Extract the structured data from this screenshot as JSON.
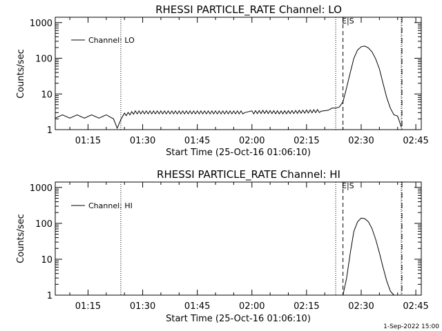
{
  "footer": "1-Sep-2022 15:00",
  "chart_data": [
    {
      "type": "line",
      "title": "RHESSI PARTICLE_RATE Channel: LO",
      "xlabel": "Start Time (25-Oct-16 01:06:10)",
      "ylabel": "Counts/sec",
      "yscale": "log",
      "x_tick_labels": [
        "01:15",
        "01:30",
        "01:45",
        "02:00",
        "02:15",
        "02:30",
        "02:45"
      ],
      "y_tick_labels": [
        "1",
        "10",
        "100",
        "1000"
      ],
      "legend": {
        "label": "Channel: LO",
        "position": "top-left"
      },
      "markers": {
        "dotted": [
          "01:24",
          "02:23",
          "02:41"
        ],
        "dashed": [
          "02:25"
        ],
        "dashdot": [
          "02:41"
        ],
        "label": "E|S"
      },
      "series": [
        {
          "name": "Channel: LO",
          "x": [
            "01:06",
            "01:08",
            "01:10",
            "01:12",
            "01:14",
            "01:16",
            "01:18",
            "01:20",
            "01:22",
            "01:23",
            "01:24",
            "01:25",
            "01:28",
            "01:33",
            "01:38",
            "01:43",
            "01:48",
            "01:53",
            "01:58",
            "02:00",
            "02:03",
            "02:08",
            "02:13",
            "02:16",
            "02:19",
            "02:21",
            "02:22",
            "02:23",
            "02:24",
            "02:25",
            "02:26",
            "02:27",
            "02:28",
            "02:29",
            "02:30",
            "02:31",
            "02:32",
            "02:33",
            "02:34",
            "02:35",
            "02:36",
            "02:37",
            "02:38",
            "02:39",
            "02:40",
            "02:41"
          ],
          "y": [
            2.1,
            2.6,
            2.1,
            2.6,
            2.1,
            2.6,
            2.1,
            2.6,
            2.0,
            1.1,
            1.9,
            2.6,
            3.0,
            3.0,
            3.0,
            3.0,
            3.0,
            3.0,
            3.0,
            3.0,
            3.1,
            3.0,
            3.1,
            3.2,
            3.3,
            3.5,
            4.0,
            4.0,
            4.3,
            6,
            15,
            40,
            100,
            170,
            210,
            220,
            195,
            150,
            95,
            50,
            20,
            8,
            4,
            2.6,
            2.4,
            1.2
          ]
        }
      ]
    },
    {
      "type": "line",
      "title": "RHESSI PARTICLE_RATE Channel: HI",
      "xlabel": "Start Time (25-Oct-16 01:06:10)",
      "ylabel": "Counts/sec",
      "yscale": "log",
      "x_tick_labels": [
        "01:15",
        "01:30",
        "01:45",
        "02:00",
        "02:15",
        "02:30",
        "02:45"
      ],
      "y_tick_labels": [
        "1",
        "10",
        "100",
        "1000"
      ],
      "legend": {
        "label": "Channel: HI",
        "position": "top-left"
      },
      "markers": {
        "dotted": [
          "01:24",
          "02:23",
          "02:41"
        ],
        "dashed": [
          "02:25"
        ],
        "dashdot": [
          "02:41"
        ],
        "label": "E|S"
      },
      "series": [
        {
          "name": "Channel: HI",
          "x": [
            "02:25",
            "02:26",
            "02:27",
            "02:28",
            "02:29",
            "02:30",
            "02:31",
            "02:32",
            "02:33",
            "02:34",
            "02:35",
            "02:36",
            "02:37",
            "02:38",
            "02:39"
          ],
          "y": [
            1.0,
            3,
            15,
            60,
            110,
            140,
            135,
            110,
            70,
            35,
            15,
            6,
            2.5,
            1.3,
            1.0
          ]
        }
      ]
    }
  ]
}
